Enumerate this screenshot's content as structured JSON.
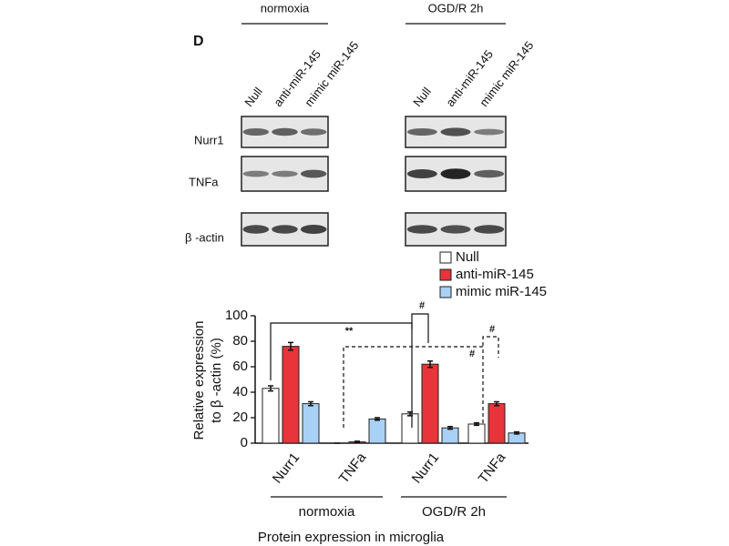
{
  "panel_label": "D",
  "blot": {
    "conditions": [
      "normoxia",
      "OGD/R 2h"
    ],
    "lanes": [
      "Null",
      "anti-miR-145",
      "mimic miR-145"
    ],
    "rows": [
      "Nurr1",
      "TNFa",
      "β -actin"
    ]
  },
  "chart_data": {
    "type": "bar",
    "categories": [
      "Nurr1",
      "TNFa",
      "Nurr1",
      "TNFa"
    ],
    "category_groups": [
      "normoxia",
      "OGD/R 2h"
    ],
    "xlabel": "Protein expression in microglia",
    "ylabel": [
      "Relative expression",
      "to β -actin (%)"
    ],
    "ylim": [
      0,
      100
    ],
    "yticks": [
      0,
      20,
      40,
      60,
      80,
      100
    ],
    "legend_position": "upper right",
    "series": [
      {
        "name": "Null",
        "color": "#ffffff",
        "values": [
          43,
          0,
          23,
          15
        ],
        "errors": [
          2,
          0,
          1.5,
          1
        ]
      },
      {
        "name": "anti-miR-145",
        "color": "#e8343a",
        "values": [
          76,
          1,
          62,
          31
        ],
        "errors": [
          3,
          0.5,
          2.5,
          1.5
        ]
      },
      {
        "name": "mimic miR-145",
        "color": "#a9d0f5",
        "values": [
          31,
          19,
          12,
          8
        ],
        "errors": [
          1.5,
          1,
          1,
          0.8
        ]
      }
    ],
    "annotations": [
      "**",
      "#",
      "#",
      "#"
    ]
  }
}
